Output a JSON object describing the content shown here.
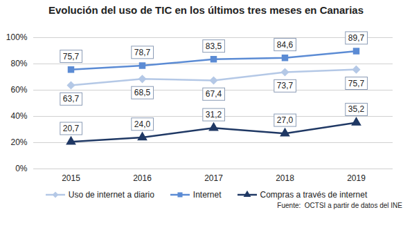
{
  "chart_data": {
    "type": "line",
    "title": "Evolución del uso de TIC en los últimos tres meses en Canarias",
    "caption": "Fuente:  OCTSI a partir de datos del INE",
    "categories": [
      "2015",
      "2016",
      "2017",
      "2018",
      "2019"
    ],
    "ylim": [
      0,
      100
    ],
    "yticks": [
      {
        "value": 0,
        "label": "0%"
      },
      {
        "value": 20,
        "label": "20%"
      },
      {
        "value": 40,
        "label": "40%"
      },
      {
        "value": 60,
        "label": "60%"
      },
      {
        "value": 80,
        "label": "80%"
      },
      {
        "value": 100,
        "label": "100%"
      }
    ],
    "grid": true,
    "legend": "bottom",
    "data_labels": true,
    "series": [
      {
        "name": "Uso de internet a diario",
        "color": "#b4c8e6",
        "marker": "diamond",
        "values": [
          63.7,
          68.5,
          67.4,
          73.7,
          75.7
        ],
        "value_labels": [
          "63,7",
          "68,5",
          "67,4",
          "73,7",
          "75,7"
        ]
      },
      {
        "name": "Internet",
        "color": "#5b8bd4",
        "marker": "square",
        "values": [
          75.7,
          78.7,
          83.5,
          84.6,
          89.7
        ],
        "value_labels": [
          "75,7",
          "78,7",
          "83,5",
          "84,6",
          "89,7"
        ]
      },
      {
        "name": "Compras a través de internet",
        "color": "#1f3864",
        "marker": "triangle",
        "values": [
          20.7,
          24.0,
          31.2,
          27.0,
          35.2
        ],
        "value_labels": [
          "20,7",
          "24,0",
          "31,2",
          "27,0",
          "35,2"
        ]
      }
    ]
  }
}
